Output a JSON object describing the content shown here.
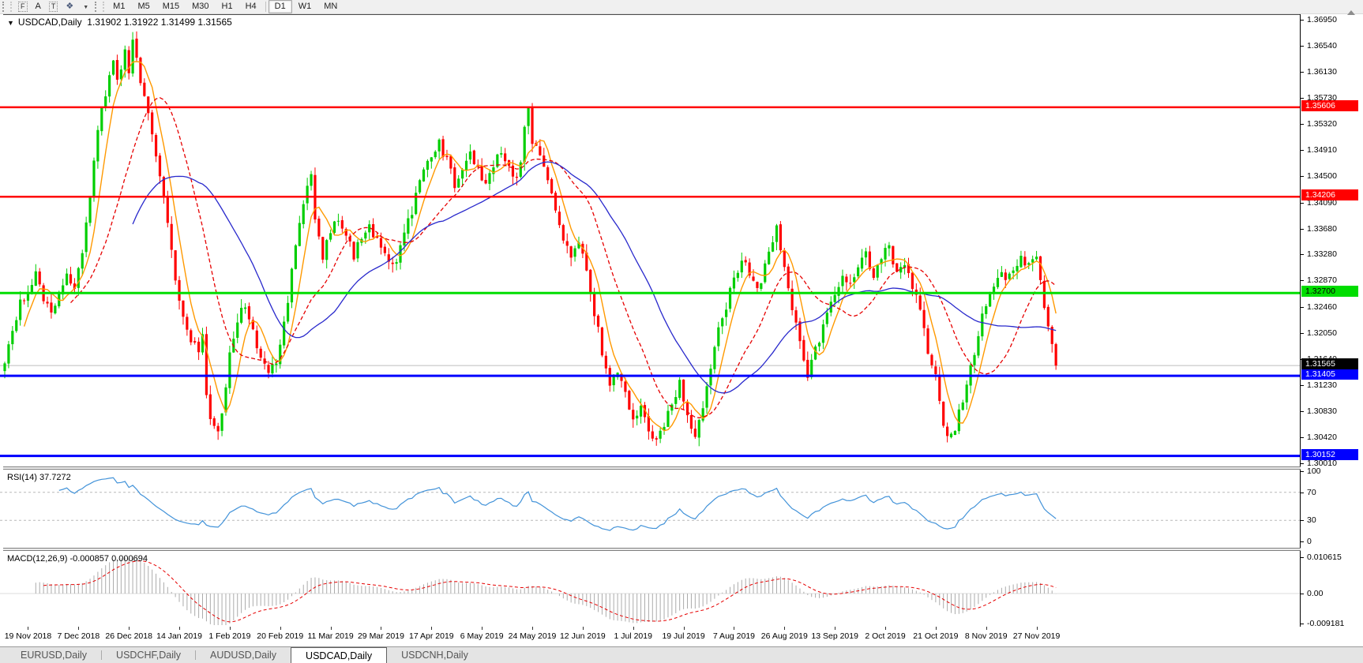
{
  "toolbar": {
    "tools": [
      {
        "name": "fibonacci-tool",
        "glyph": "F"
      },
      {
        "name": "text-tool",
        "glyph": "A"
      },
      {
        "name": "label-tool",
        "glyph": "T"
      },
      {
        "name": "arrows-tool",
        "glyph": "❖"
      }
    ],
    "periods": [
      "M1",
      "M5",
      "M15",
      "M30",
      "H1",
      "H4",
      "D1",
      "W1",
      "MN"
    ],
    "active_period": "D1"
  },
  "chart": {
    "title": {
      "menu_glyph": "▼",
      "symbol": "USDCAD,Daily",
      "ohlc": "1.31902 1.31922 1.31499 1.31565"
    },
    "price_axis": {
      "ticks": [
        "1.36950",
        "1.36540",
        "1.36130",
        "1.35730",
        "1.35320",
        "1.34910",
        "1.34500",
        "1.34090",
        "1.33680",
        "1.33280",
        "1.32870",
        "1.32460",
        "1.32050",
        "1.31640",
        "1.31230",
        "1.30830",
        "1.30420",
        "1.30010"
      ],
      "top_price": 1.3695,
      "bottom_price": 1.3001
    },
    "hlines": [
      {
        "price": 1.35606,
        "label": "1.35606",
        "color": "#ff0000",
        "width": 2.5,
        "badge_bg": "#ff0000",
        "badge_fg": "#ffffff"
      },
      {
        "price": 1.34206,
        "label": "1.34206",
        "color": "#ff0000",
        "width": 2.5,
        "badge_bg": "#ff0000",
        "badge_fg": "#ffffff"
      },
      {
        "price": 1.327,
        "label": "1.32700",
        "color": "#00dd00",
        "width": 3,
        "badge_bg": "#00dd00",
        "badge_fg": "#000000"
      },
      {
        "price": 1.31405,
        "label": "1.31405",
        "color": "#0000ff",
        "width": 3,
        "badge_bg": "#0000ff",
        "badge_fg": "#ffffff"
      },
      {
        "price": 1.30152,
        "label": "1.30152",
        "color": "#0000ff",
        "width": 3,
        "badge_bg": "#0000ff",
        "badge_fg": "#ffffff"
      }
    ],
    "current_price": {
      "price": 1.31565,
      "label": "1.31565",
      "line_color": "#bdbdbd",
      "badge_bg": "#000000",
      "badge_fg": "#ffffff"
    },
    "date_axis": [
      "19 Nov 2018",
      "7 Dec 2018",
      "26 Dec 2018",
      "14 Jan 2019",
      "1 Feb 2019",
      "20 Feb 2019",
      "11 Mar 2019",
      "29 Mar 2019",
      "17 Apr 2019",
      "6 May 2019",
      "24 May 2019",
      "12 Jun 2019",
      "1 Jul 2019",
      "19 Jul 2019",
      "7 Aug 2019",
      "26 Aug 2019",
      "13 Sep 2019",
      "2 Oct 2019",
      "21 Oct 2019",
      "8 Nov 2019",
      "27 Nov 2019"
    ],
    "chart_data": {
      "type": "candlestick",
      "symbol": "USDCAD",
      "timeframe": "Daily",
      "bars": 272,
      "x_range": [
        "19 Nov 2018",
        "4 Dec 2019"
      ],
      "y_range": [
        1.3001,
        1.3695
      ],
      "last_bar": {
        "open": 1.31902,
        "high": 1.31922,
        "low": 1.31499,
        "close": 1.31565
      },
      "up_color": "#00ce00",
      "down_color": "#ff0000",
      "moving_averages": [
        {
          "name": "fast-ma",
          "period": 6,
          "color": "#ff9900",
          "style": "solid"
        },
        {
          "name": "mid-ma",
          "period": 18,
          "color": "#e60000",
          "style": "dash"
        },
        {
          "name": "slow-ma",
          "period": 34,
          "color": "#2929cc",
          "style": "solid"
        }
      ],
      "close_anchors": [
        [
          0,
          1.3165
        ],
        [
          2,
          1.321
        ],
        [
          4,
          1.3255
        ],
        [
          6,
          1.3275
        ],
        [
          8,
          1.33
        ],
        [
          10,
          1.3265
        ],
        [
          12,
          1.324
        ],
        [
          14,
          1.3275
        ],
        [
          16,
          1.33
        ],
        [
          18,
          1.328
        ],
        [
          20,
          1.333
        ],
        [
          22,
          1.342
        ],
        [
          24,
          1.353
        ],
        [
          26,
          1.3575
        ],
        [
          28,
          1.364
        ],
        [
          29,
          1.3605
        ],
        [
          30,
          1.3625
        ],
        [
          31,
          1.3655
        ],
        [
          32,
          1.362
        ],
        [
          33,
          1.366
        ],
        [
          34,
          1.364
        ],
        [
          35,
          1.3605
        ],
        [
          36,
          1.3575
        ],
        [
          38,
          1.3525
        ],
        [
          40,
          1.3455
        ],
        [
          42,
          1.3375
        ],
        [
          44,
          1.3295
        ],
        [
          46,
          1.3235
        ],
        [
          48,
          1.32
        ],
        [
          50,
          1.318
        ],
        [
          51,
          1.321
        ],
        [
          52,
          1.311
        ],
        [
          53,
          1.3075
        ],
        [
          54,
          1.3058
        ],
        [
          55,
          1.3048
        ],
        [
          56,
          1.308
        ],
        [
          57,
          1.312
        ],
        [
          58,
          1.317
        ],
        [
          60,
          1.323
        ],
        [
          62,
          1.325
        ],
        [
          64,
          1.321
        ],
        [
          66,
          1.317
        ],
        [
          68,
          1.3145
        ],
        [
          70,
          1.316
        ],
        [
          72,
          1.322
        ],
        [
          74,
          1.33
        ],
        [
          76,
          1.338
        ],
        [
          78,
          1.344
        ],
        [
          79,
          1.345
        ],
        [
          80,
          1.339
        ],
        [
          82,
          1.333
        ],
        [
          84,
          1.336
        ],
        [
          86,
          1.339
        ],
        [
          88,
          1.336
        ],
        [
          90,
          1.333
        ],
        [
          92,
          1.3355
        ],
        [
          94,
          1.338
        ],
        [
          96,
          1.335
        ],
        [
          98,
          1.333
        ],
        [
          100,
          1.331
        ],
        [
          102,
          1.334
        ],
        [
          104,
          1.338
        ],
        [
          106,
          1.342
        ],
        [
          108,
          1.346
        ],
        [
          110,
          1.349
        ],
        [
          112,
          1.3505
        ],
        [
          114,
          1.3475
        ],
        [
          116,
          1.344
        ],
        [
          118,
          1.347
        ],
        [
          120,
          1.349
        ],
        [
          122,
          1.3465
        ],
        [
          124,
          1.344
        ],
        [
          126,
          1.347
        ],
        [
          128,
          1.349
        ],
        [
          130,
          1.3465
        ],
        [
          132,
          1.3445
        ],
        [
          133,
          1.348
        ],
        [
          134,
          1.353
        ],
        [
          135,
          1.356
        ],
        [
          136,
          1.351
        ],
        [
          138,
          1.348
        ],
        [
          140,
          1.344
        ],
        [
          142,
          1.34
        ],
        [
          144,
          1.336
        ],
        [
          146,
          1.333
        ],
        [
          148,
          1.335
        ],
        [
          150,
          1.33
        ],
        [
          152,
          1.324
        ],
        [
          154,
          1.318
        ],
        [
          156,
          1.313
        ],
        [
          158,
          1.315
        ],
        [
          160,
          1.311
        ],
        [
          162,
          1.307
        ],
        [
          164,
          1.309
        ],
        [
          166,
          1.305
        ],
        [
          168,
          1.3035
        ],
        [
          170,
          1.306
        ],
        [
          172,
          1.31
        ],
        [
          174,
          1.313
        ],
        [
          176,
          1.308
        ],
        [
          178,
          1.305
        ],
        [
          180,
          1.309
        ],
        [
          182,
          1.315
        ],
        [
          184,
          1.321
        ],
        [
          186,
          1.325
        ],
        [
          188,
          1.329
        ],
        [
          190,
          1.332
        ],
        [
          192,
          1.33
        ],
        [
          194,
          1.327
        ],
        [
          196,
          1.331
        ],
        [
          198,
          1.335
        ],
        [
          199,
          1.3375
        ],
        [
          200,
          1.334
        ],
        [
          201,
          1.331
        ],
        [
          202,
          1.327
        ],
        [
          204,
          1.322
        ],
        [
          206,
          1.317
        ],
        [
          207,
          1.314
        ],
        [
          208,
          1.316
        ],
        [
          210,
          1.32
        ],
        [
          212,
          1.324
        ],
        [
          214,
          1.327
        ],
        [
          216,
          1.33
        ],
        [
          218,
          1.328
        ],
        [
          220,
          1.331
        ],
        [
          222,
          1.333
        ],
        [
          224,
          1.33
        ],
        [
          226,
          1.333
        ],
        [
          228,
          1.334
        ],
        [
          230,
          1.33
        ],
        [
          232,
          1.332
        ],
        [
          234,
          1.328
        ],
        [
          236,
          1.324
        ],
        [
          238,
          1.318
        ],
        [
          240,
          1.314
        ],
        [
          241,
          1.31
        ],
        [
          242,
          1.307
        ],
        [
          243,
          1.305
        ],
        [
          244,
          1.3042
        ],
        [
          245,
          1.306
        ],
        [
          246,
          1.308
        ],
        [
          248,
          1.313
        ],
        [
          250,
          1.318
        ],
        [
          252,
          1.323
        ],
        [
          254,
          1.327
        ],
        [
          256,
          1.33
        ],
        [
          258,
          1.329
        ],
        [
          260,
          1.331
        ],
        [
          262,
          1.333
        ],
        [
          264,
          1.331
        ],
        [
          266,
          1.332
        ],
        [
          267,
          1.329
        ],
        [
          268,
          1.325
        ],
        [
          269,
          1.321
        ],
        [
          270,
          1.319
        ],
        [
          271,
          1.31565
        ]
      ]
    }
  },
  "rsi": {
    "label": "RSI(14) 37.7272",
    "period": 14,
    "value": 37.7272,
    "levels": [
      70,
      30
    ],
    "axis_ticks": [
      "100",
      "70",
      "30",
      "0"
    ],
    "line_color": "#4393d9"
  },
  "macd": {
    "label": "MACD(12,26,9) -0.000857 0.000694",
    "fast": 12,
    "slow": 26,
    "signal": 9,
    "macd_value": -0.000857,
    "signal_value": 0.000694,
    "axis_ticks": {
      "max": "0.010615",
      "zero": "0.00",
      "min": "-0.009181"
    },
    "histogram_color": "#ababab",
    "signal_color": "#e60000"
  },
  "tabs": [
    {
      "label": "EURUSD,Daily",
      "active": false
    },
    {
      "label": "USDCHF,Daily",
      "active": false
    },
    {
      "label": "AUDUSD,Daily",
      "active": false
    },
    {
      "label": "USDCAD,Daily",
      "active": true
    },
    {
      "label": "USDCNH,Daily",
      "active": false
    }
  ],
  "colors": {
    "toolbar_bg": "#f0f0f0",
    "chart_bg": "#ffffff",
    "axis_text": "#000000",
    "tab_bg": "#e4e4e4"
  }
}
